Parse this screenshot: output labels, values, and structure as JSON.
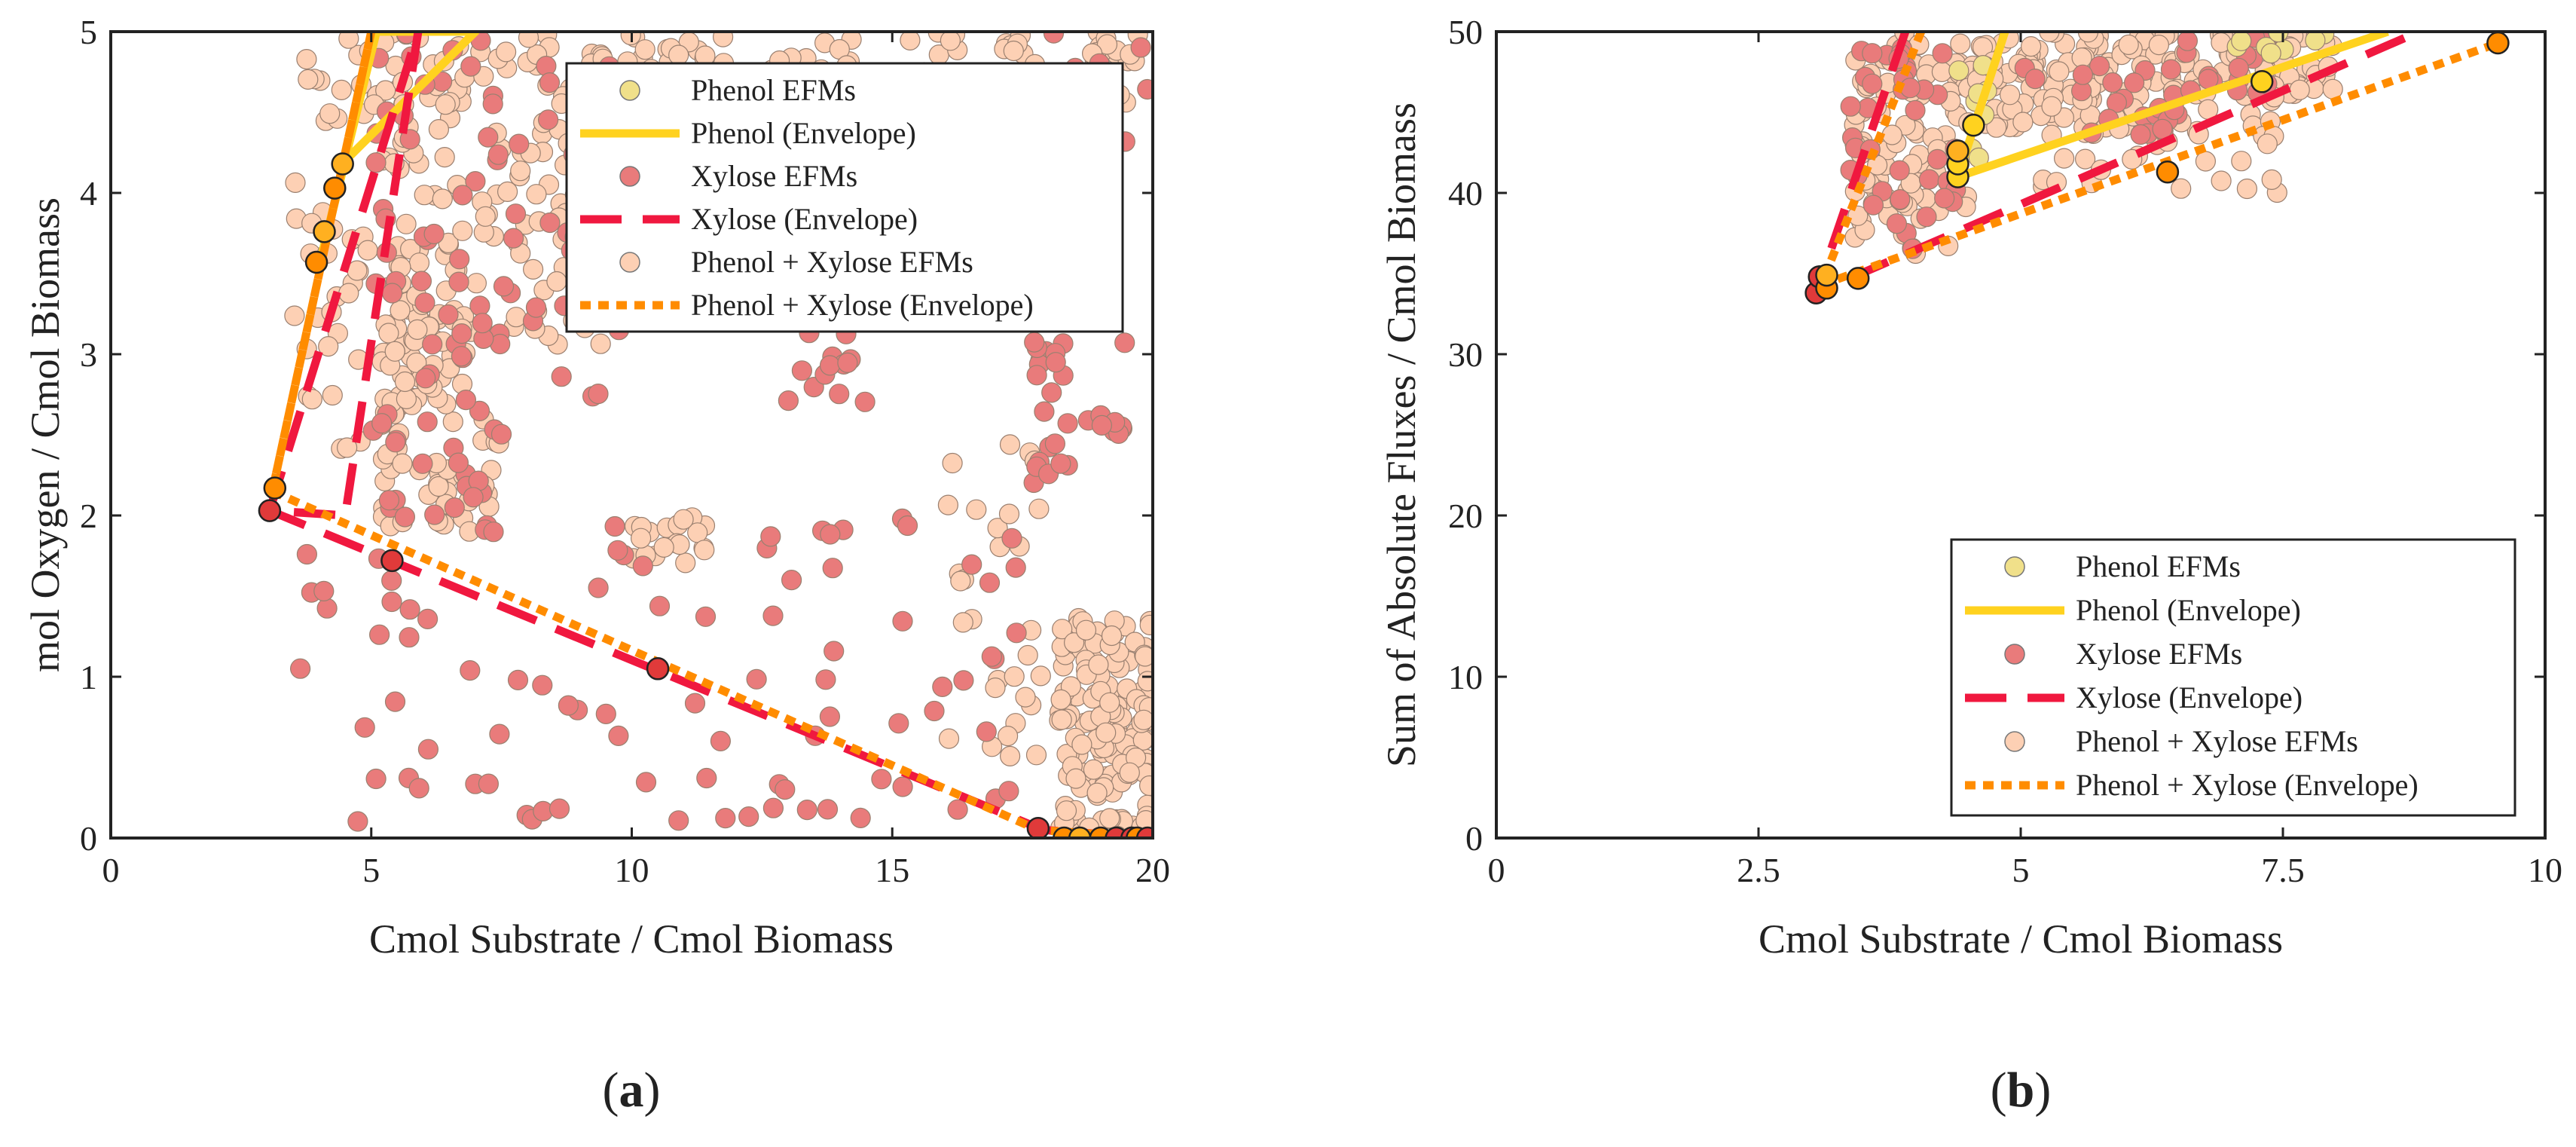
{
  "chart_data": [
    {
      "type": "scatter",
      "panel_label": "(a)",
      "panel_letter": "a",
      "xlabel": "Cmol Substrate / Cmol Biomass",
      "ylabel": "mol Oxygen / Cmol Biomass",
      "xlim": [
        0,
        20
      ],
      "ylim": [
        0,
        5
      ],
      "xticks": [
        0,
        5,
        10,
        15,
        20
      ],
      "xtick_labels": [
        "0",
        "5",
        "10",
        "15",
        "20"
      ],
      "yticks": [
        0,
        1,
        2,
        3,
        4,
        5
      ],
      "ytick_labels": [
        "0",
        "1",
        "2",
        "3",
        "4",
        "5"
      ],
      "legend_position": "top-right",
      "legend": [
        {
          "label": "Phenol EFMs",
          "kind": "marker",
          "color": "#f0e08a"
        },
        {
          "label": "Phenol (Envelope)",
          "kind": "line",
          "color": "#ffd21f",
          "dash": "solid"
        },
        {
          "label": "Xylose EFMs",
          "kind": "marker",
          "color": "#e97b7b"
        },
        {
          "label": "Xylose (Envelope)",
          "kind": "line",
          "color": "#f0183f",
          "dash": "dashed"
        },
        {
          "label": "Phenol + Xylose EFMs",
          "kind": "marker",
          "color": "#fdd0b4"
        },
        {
          "label": "Phenol + Xylose (Envelope)",
          "kind": "line",
          "color": "#ff8c00",
          "dash": "dotted"
        }
      ],
      "series": [
        {
          "name": "Phenol + Xylose EFMs",
          "color": "#fdd0b4",
          "kind": "scatter",
          "clusters": [
            {
              "x": [
                3.5,
                6.5
              ],
              "y": [
                2.4,
                5.0
              ],
              "n": 90
            },
            {
              "x": [
                5.5,
                9.5
              ],
              "y": [
                3.0,
                5.0
              ],
              "n": 110
            },
            {
              "x": [
                9.0,
                12.0
              ],
              "y": [
                4.1,
                5.0
              ],
              "n": 70
            },
            {
              "x": [
                12.0,
                19.8
              ],
              "y": [
                4.5,
                5.0
              ],
              "n": 80
            },
            {
              "x": [
                5.2,
                7.5
              ],
              "y": [
                1.9,
                3.3
              ],
              "n": 70
            },
            {
              "x": [
                10.0,
                11.5
              ],
              "y": [
                1.7,
                2.0
              ],
              "n": 20
            },
            {
              "x": [
                18.2,
                20.0
              ],
              "y": [
                0.0,
                1.4
              ],
              "n": 150
            },
            {
              "x": [
                16.0,
                18.0
              ],
              "y": [
                0.5,
                2.5
              ],
              "n": 30
            }
          ]
        },
        {
          "name": "Xylose EFMs",
          "color": "#e97b7b",
          "kind": "scatter",
          "clusters": [
            {
              "x": [
                5.0,
                7.5
              ],
              "y": [
                2.0,
                5.0
              ],
              "n": 70
            },
            {
              "x": [
                7.5,
                10.0
              ],
              "y": [
                2.7,
                5.0
              ],
              "n": 40
            },
            {
              "x": [
                13.0,
                14.5
              ],
              "y": [
                2.7,
                3.4
              ],
              "n": 18
            },
            {
              "x": [
                17.5,
                19.5
              ],
              "y": [
                2.2,
                3.2
              ],
              "n": 30
            },
            {
              "x": [
                3.2,
                17.8
              ],
              "y": [
                0.1,
                2.0
              ],
              "n": 90
            },
            {
              "x": [
                18.0,
                20.0
              ],
              "y": [
                4.3,
                5.0
              ],
              "n": 10
            }
          ]
        }
      ],
      "envelopes": [
        {
          "name": "Phenol (Envelope)",
          "color": "#ffd21f",
          "dash": "solid",
          "x": [
            4.0,
            5.1,
            7.0,
            4.5,
            4.0
          ],
          "y": [
            3.55,
            5.0,
            5.0,
            4.2,
            3.55
          ]
        },
        {
          "name": "Xylose (Envelope)",
          "color": "#f0183f",
          "dash": "dashed",
          "x": [
            3.05,
            5.9,
            5.9,
            4.5,
            3.05,
            17.9,
            20.0
          ],
          "y": [
            2.03,
            5.0,
            5.0,
            2.0,
            2.03,
            0.05,
            0.0
          ]
        },
        {
          "name": "Phenol + Xylose (Envelope)",
          "color": "#ff8c00",
          "dash": "dotted",
          "x": [
            3.1,
            5.0,
            5.0,
            3.1,
            17.8,
            20.0
          ],
          "y": [
            2.15,
            5.0,
            5.0,
            2.15,
            0.05,
            0.0
          ]
        }
      ],
      "highlighted_points": [
        {
          "x": 3.05,
          "y": 2.03,
          "color": "#e03a3a"
        },
        {
          "x": 3.15,
          "y": 2.17,
          "color": "#ff8c00"
        },
        {
          "x": 3.95,
          "y": 3.57,
          "color": "#ff8c00"
        },
        {
          "x": 4.1,
          "y": 3.76,
          "color": "#ffb020"
        },
        {
          "x": 4.3,
          "y": 4.03,
          "color": "#ff8c00"
        },
        {
          "x": 4.45,
          "y": 4.18,
          "color": "#ffb020"
        },
        {
          "x": 5.4,
          "y": 1.72,
          "color": "#e03a3a"
        },
        {
          "x": 10.5,
          "y": 1.05,
          "color": "#e03a3a"
        },
        {
          "x": 17.8,
          "y": 0.06,
          "color": "#e03a3a"
        },
        {
          "x": 18.3,
          "y": 0.0,
          "color": "#ff8c00"
        },
        {
          "x": 18.6,
          "y": 0.0,
          "color": "#ffb020"
        },
        {
          "x": 19.0,
          "y": 0.0,
          "color": "#ff8c00"
        },
        {
          "x": 19.3,
          "y": 0.0,
          "color": "#e03a3a"
        },
        {
          "x": 19.6,
          "y": 0.0,
          "color": "#e03a3a"
        },
        {
          "x": 19.7,
          "y": 0.0,
          "color": "#ff8c00"
        },
        {
          "x": 19.9,
          "y": 0.0,
          "color": "#e03a3a"
        }
      ]
    },
    {
      "type": "scatter",
      "panel_label": "(b)",
      "panel_letter": "b",
      "xlabel": "Cmol Substrate / Cmol Biomass",
      "ylabel": "Sum of Absolute Fluxes / Cmol Biomass",
      "xlim": [
        0,
        10
      ],
      "ylim": [
        0,
        50
      ],
      "xticks": [
        0,
        2.5,
        5,
        7.5,
        10
      ],
      "xtick_labels": [
        "0",
        "2.5",
        "5",
        "7.5",
        "10"
      ],
      "yticks": [
        0,
        10,
        20,
        30,
        40,
        50
      ],
      "ytick_labels": [
        "0",
        "10",
        "20",
        "30",
        "40",
        "50"
      ],
      "legend_position": "bottom-right",
      "legend": [
        {
          "label": "Phenol EFMs",
          "kind": "marker",
          "color": "#f0e08a"
        },
        {
          "label": "Phenol (Envelope)",
          "kind": "line",
          "color": "#ffd21f",
          "dash": "solid"
        },
        {
          "label": "Xylose EFMs",
          "kind": "marker",
          "color": "#e97b7b"
        },
        {
          "label": "Xylose (Envelope)",
          "kind": "line",
          "color": "#f0183f",
          "dash": "dashed"
        },
        {
          "label": "Phenol + Xylose EFMs",
          "kind": "marker",
          "color": "#fdd0b4"
        },
        {
          "label": "Phenol + Xylose (Envelope)",
          "kind": "line",
          "color": "#ff8c00",
          "dash": "dotted"
        }
      ],
      "series": [
        {
          "name": "Phenol + Xylose EFMs",
          "color": "#fdd0b4",
          "kind": "scatter",
          "clusters": [
            {
              "x": [
                3.4,
                4.5
              ],
              "y": [
                36.0,
                50.0
              ],
              "n": 90
            },
            {
              "x": [
                4.5,
                6.0
              ],
              "y": [
                43.5,
                50.0
              ],
              "n": 90
            },
            {
              "x": [
                6.0,
                8.0
              ],
              "y": [
                46.0,
                50.0
              ],
              "n": 80
            },
            {
              "x": [
                5.0,
                7.5
              ],
              "y": [
                40.0,
                46.0
              ],
              "n": 40
            }
          ]
        },
        {
          "name": "Xylose EFMs",
          "color": "#e97b7b",
          "kind": "scatter",
          "clusters": [
            {
              "x": [
                3.3,
                4.4
              ],
              "y": [
                36.5,
                49.0
              ],
              "n": 40
            },
            {
              "x": [
                5.0,
                6.5
              ],
              "y": [
                43.0,
                48.5
              ],
              "n": 25
            },
            {
              "x": [
                6.5,
                7.4
              ],
              "y": [
                46.0,
                50.0
              ],
              "n": 15
            }
          ]
        },
        {
          "name": "Phenol EFMs",
          "color": "#f0e08a",
          "kind": "scatter",
          "clusters": [
            {
              "x": [
                4.4,
                4.7
              ],
              "y": [
                41.5,
                49.0
              ],
              "n": 10
            },
            {
              "x": [
                7.0,
                8.0
              ],
              "y": [
                48.5,
                50.0
              ],
              "n": 8
            }
          ]
        }
      ],
      "envelopes": [
        {
          "name": "Phenol (Envelope)",
          "color": "#ffd21f",
          "dash": "solid",
          "x": [
            4.85,
            4.4,
            4.4,
            8.5
          ],
          "y": [
            50.0,
            41.0,
            41.0,
            50.0
          ]
        },
        {
          "name": "Xylose (Envelope)",
          "color": "#f0183f",
          "dash": "dashed",
          "x": [
            3.9,
            3.05,
            3.05,
            8.8
          ],
          "y": [
            50.0,
            33.8,
            33.8,
            50.0
          ]
        },
        {
          "name": "Phenol + Xylose (Envelope)",
          "color": "#ff8c00",
          "dash": "dotted",
          "x": [
            4.05,
            3.1,
            3.1,
            9.6
          ],
          "y": [
            50.0,
            34.3,
            34.3,
            49.4
          ]
        }
      ],
      "highlighted_points": [
        {
          "x": 3.05,
          "y": 33.8,
          "color": "#e03a3a"
        },
        {
          "x": 3.08,
          "y": 34.8,
          "color": "#e03a3a"
        },
        {
          "x": 3.15,
          "y": 34.1,
          "color": "#ff8c00"
        },
        {
          "x": 3.15,
          "y": 34.9,
          "color": "#ffb020"
        },
        {
          "x": 3.45,
          "y": 34.7,
          "color": "#ff8c00"
        },
        {
          "x": 4.4,
          "y": 41.0,
          "color": "#ffd21f"
        },
        {
          "x": 4.4,
          "y": 41.8,
          "color": "#ffd21f"
        },
        {
          "x": 4.4,
          "y": 42.6,
          "color": "#ffb020"
        },
        {
          "x": 4.55,
          "y": 44.2,
          "color": "#ffd21f"
        },
        {
          "x": 6.4,
          "y": 41.3,
          "color": "#ff8c00"
        },
        {
          "x": 7.3,
          "y": 46.9,
          "color": "#ffd21f"
        },
        {
          "x": 9.55,
          "y": 49.3,
          "color": "#ff8c00"
        }
      ]
    }
  ]
}
